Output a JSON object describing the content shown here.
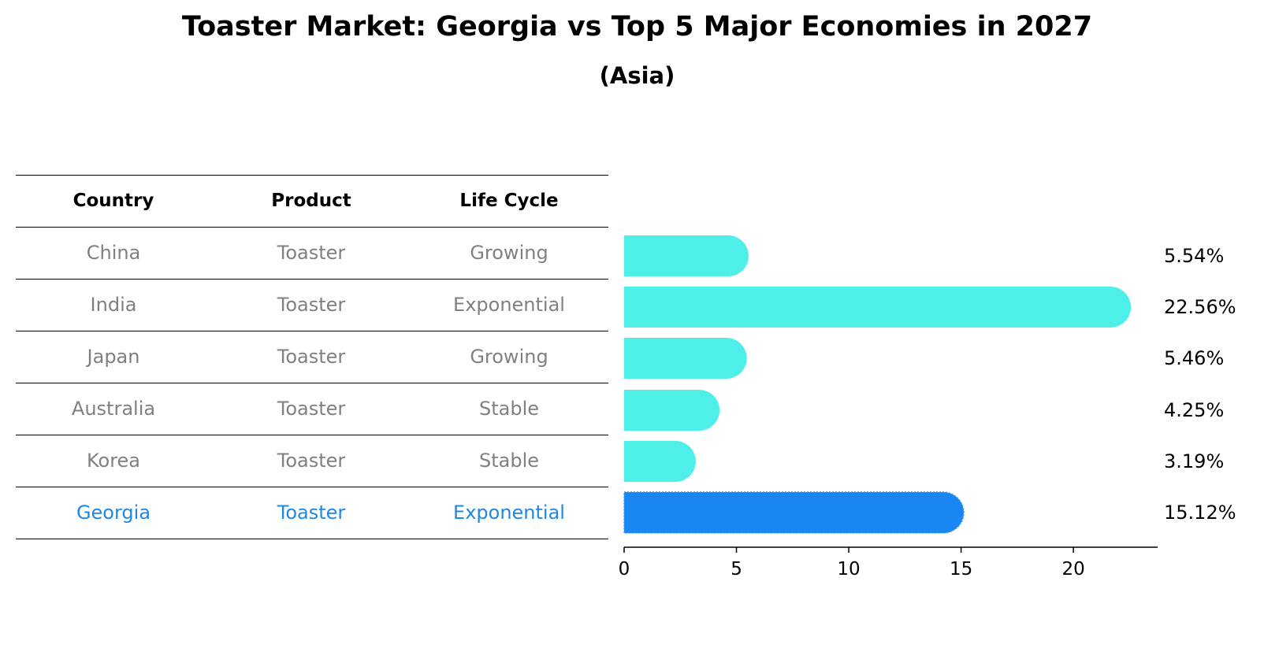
{
  "chart_data": {
    "type": "bar",
    "orientation": "horizontal",
    "title": "Toaster Market: Georgia vs Top 5 Major Economies in 2027",
    "subtitle": "(Asia)",
    "table": {
      "headers": [
        "Country",
        "Product",
        "Life Cycle"
      ],
      "rows": [
        [
          "China",
          "Toaster",
          "Growing"
        ],
        [
          "India",
          "Toaster",
          "Exponential"
        ],
        [
          "Japan",
          "Toaster",
          "Growing"
        ],
        [
          "Australia",
          "Toaster",
          "Stable"
        ],
        [
          "Korea",
          "Toaster",
          "Stable"
        ],
        [
          "Georgia",
          "Toaster",
          "Exponential"
        ]
      ],
      "highlight_row": 5
    },
    "categories": [
      "China",
      "India",
      "Japan",
      "Australia",
      "Korea",
      "Georgia"
    ],
    "values": [
      5.54,
      22.56,
      5.46,
      4.25,
      3.19,
      15.12
    ],
    "value_labels": [
      "5.54%",
      "22.56%",
      "5.46%",
      "4.25%",
      "3.19%",
      "15.12%"
    ],
    "xlim": [
      0,
      23.75
    ],
    "xticks": [
      0,
      5,
      10,
      15,
      20
    ],
    "xtick_labels": [
      "0",
      "5",
      "10",
      "15",
      "20"
    ],
    "colors": {
      "bar": "#4eeee9",
      "highlight_bar": "#1a86f2",
      "highlight_text": "#1e88e5",
      "muted_text": "#808080"
    }
  }
}
